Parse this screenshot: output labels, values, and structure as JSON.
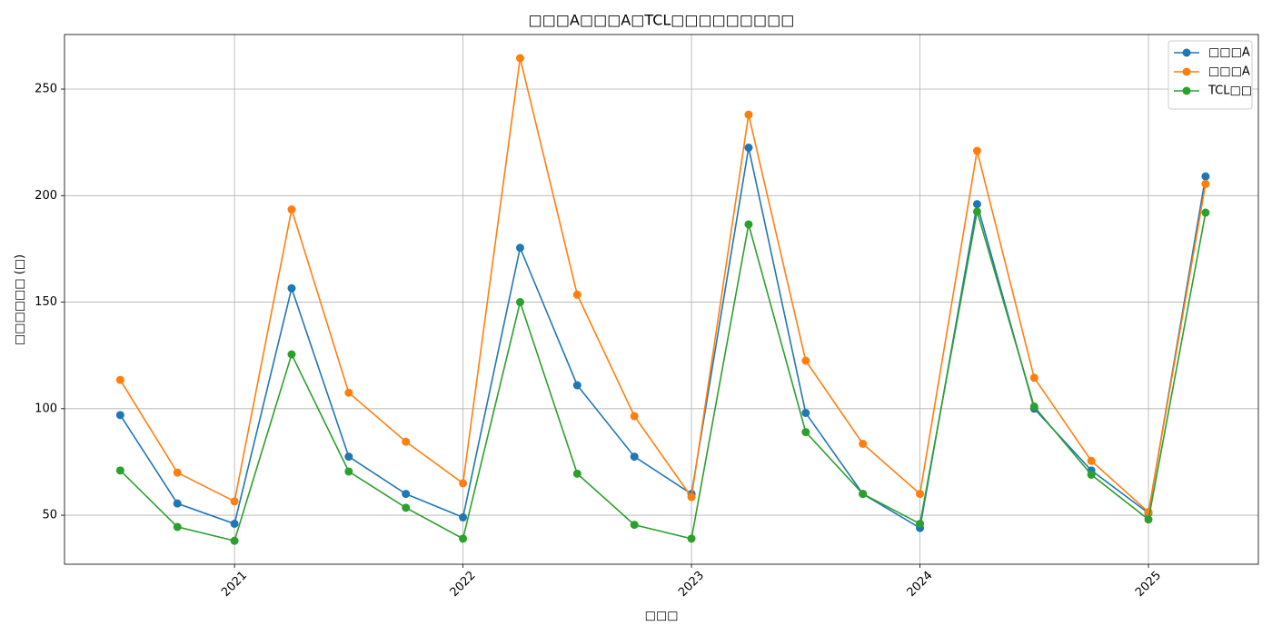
{
  "chart_data": {
    "type": "line",
    "title": "□□□A□□□A□TCL□□□□□□□□□",
    "x_label": "□□□",
    "y_label": "□□□□□□ (□)",
    "x": [
      2020.5,
      2020.75,
      2021.0,
      2021.25,
      2021.5,
      2021.75,
      2022.0,
      2022.25,
      2022.5,
      2022.75,
      2023.0,
      2023.25,
      2023.5,
      2023.75,
      2024.0,
      2024.25,
      2024.5,
      2024.75,
      2025.0,
      2025.25
    ],
    "series": [
      {
        "name": "□□□A",
        "color": "#1f77b4",
        "values": [
          97,
          55.5,
          46,
          156.5,
          77.5,
          60,
          49,
          175.5,
          111,
          77.5,
          60,
          222.5,
          98,
          60,
          44,
          196,
          100,
          71,
          51,
          209
        ]
      },
      {
        "name": "□□□A",
        "color": "#ff7f0e",
        "values": [
          113.5,
          70,
          56.5,
          193.5,
          107.5,
          84.5,
          65,
          264.5,
          153.5,
          96.5,
          58.5,
          238,
          122.5,
          83.5,
          60,
          221,
          114.5,
          75.5,
          51.5,
          205.5
        ]
      },
      {
        "name": "TCL□□",
        "color": "#2ca02c",
        "values": [
          71,
          44.5,
          38,
          125.5,
          70.5,
          53.5,
          39,
          150,
          69.5,
          45.5,
          39,
          186.5,
          89,
          60,
          46,
          192.5,
          101,
          69,
          48,
          192
        ]
      }
    ],
    "xlim": [
      2020.256,
      2025.481
    ],
    "ylim": [
      27,
      275.6
    ],
    "xticks": [
      2021,
      2022,
      2023,
      2024,
      2025
    ],
    "yticks": [
      50,
      100,
      150,
      200,
      250
    ],
    "grid": true,
    "legend": "upper-right"
  }
}
